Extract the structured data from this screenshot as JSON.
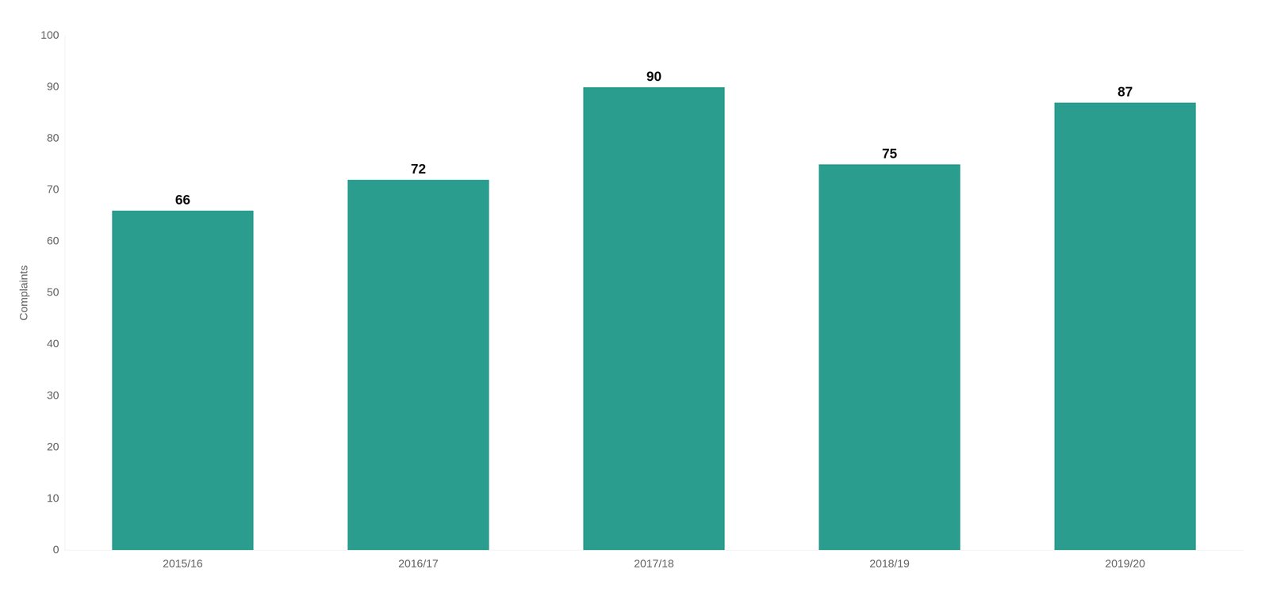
{
  "chart_data": {
    "type": "bar",
    "categories": [
      "2015/16",
      "2016/17",
      "2017/18",
      "2018/19",
      "2019/20"
    ],
    "values": [
      66,
      72,
      90,
      75,
      87
    ],
    "color": "#2a9d8f",
    "ylabel": "Complaints",
    "ylim": [
      0,
      100
    ],
    "yticks": [
      0,
      10,
      20,
      30,
      40,
      50,
      60,
      70,
      80,
      90,
      100
    ],
    "grid": false,
    "data_labels": true
  }
}
